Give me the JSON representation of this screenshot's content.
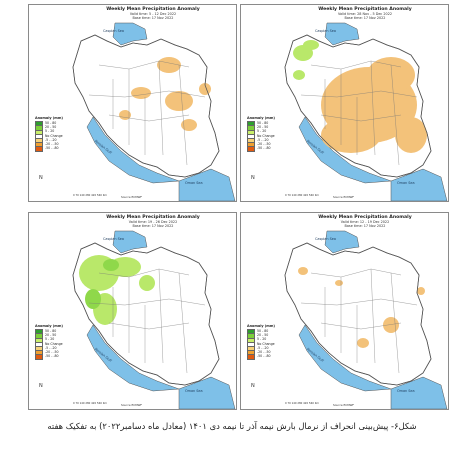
{
  "panels": [
    {
      "title": "Weekly Mean Precipitation Anomaly",
      "valid": "Valid time: 5 - 12 Dec 2022",
      "base": "Base time: 17 Nov 2022",
      "sea_north": "Caspian Sea",
      "sea_gulf": "Persian Gulf",
      "sea_oman": "Oman Sea",
      "source": "Source ECMWF"
    },
    {
      "title": "Weekly Mean Precipitation Anomaly",
      "valid": "Valid time: 28 Nov - 5 Dec 2022",
      "base": "Base time: 17 Nov 2022",
      "sea_north": "Caspian Sea",
      "sea_gulf": "Persian Gulf",
      "sea_oman": "Oman Sea",
      "source": "Source ECMWF"
    },
    {
      "title": "Weekly Mean Precipitation Anomaly",
      "valid": "Valid time: 19 - 26 Dec 2022",
      "base": "Base time: 17 Nov 2022",
      "sea_north": "Caspian Sea",
      "sea_gulf": "Persian Gulf",
      "sea_oman": "Oman Sea",
      "source": "Source ECMWF"
    },
    {
      "title": "Weekly Mean Precipitation Anomaly",
      "valid": "Valid time: 12 - 19 Dec 2022",
      "base": "Base time: 17 Nov 2022",
      "sea_north": "Caspian Sea",
      "sea_gulf": "Persian Gulf",
      "sea_oman": "Oman Sea",
      "source": "Source ECMWF"
    }
  ],
  "legend": {
    "title": "Anomaly (mm)",
    "items": [
      {
        "label": "50 - 80",
        "color": "#2e9e2e"
      },
      {
        "label": "20 - 50",
        "color": "#7ccf3a"
      },
      {
        "label": "5 - 20",
        "color": "#c9ef6a"
      },
      {
        "label": "No Change",
        "color": "#ffffff"
      },
      {
        "label": "-5 - -20",
        "color": "#f6d27a"
      },
      {
        "label": "-20 - -50",
        "color": "#f0a030"
      },
      {
        "label": "-50 - -80",
        "color": "#e05a10"
      }
    ]
  },
  "scale_text": "0 70 140 280 420 560 Km",
  "compass": "N",
  "caption_line1": "شکل۶- پیش‌بینی انحراف از نرمال بارش نیمه آذر تا نیمه دی ۱۴۰۱ (معادل ماه دسامبر۲۰۲۲) به تفکیک هفته",
  "colors": {
    "water": "#7ec0e8",
    "dry": "#f3c27a",
    "wet": "#b9e86a",
    "border": "#555555"
  }
}
